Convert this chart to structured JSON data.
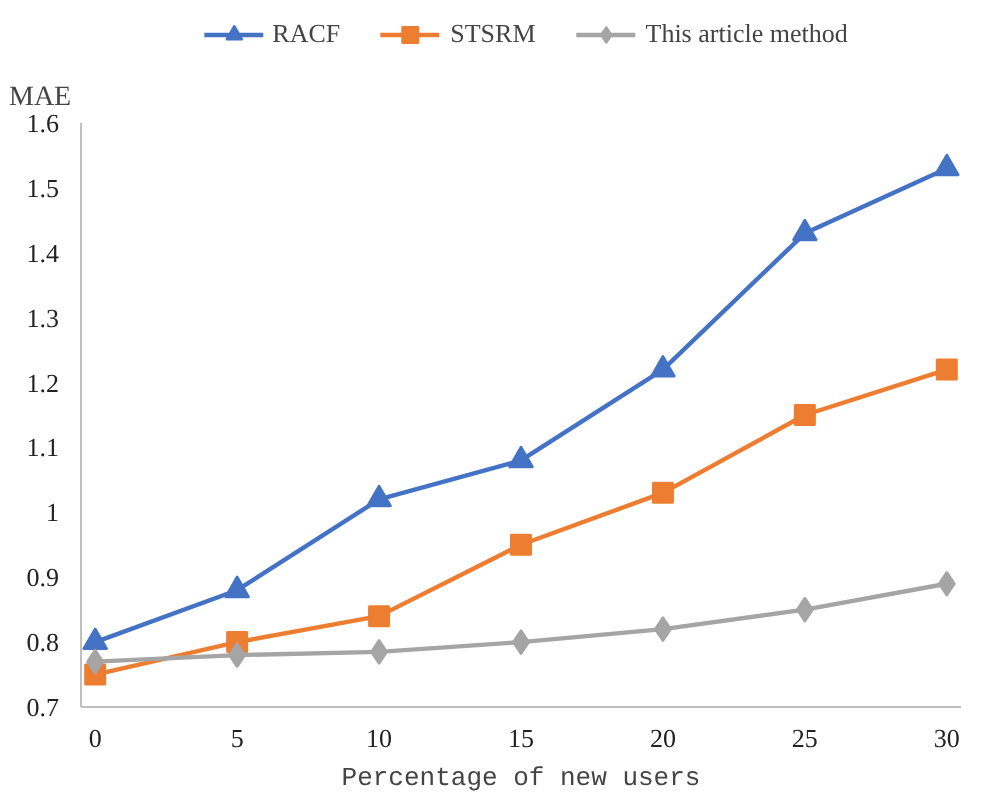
{
  "chart_data": {
    "type": "line",
    "ylabel": "MAE",
    "xlabel": "Percentage of new users",
    "x": [
      0,
      5,
      10,
      15,
      20,
      25,
      30
    ],
    "xlim": [
      -0.5,
      30.5
    ],
    "xticks": [
      0,
      5,
      10,
      15,
      20,
      25,
      30
    ],
    "ylim": [
      0.7,
      1.6
    ],
    "yticks": [
      {
        "value": 0.7,
        "label": "0.7"
      },
      {
        "value": 0.8,
        "label": "0.8"
      },
      {
        "value": 0.9,
        "label": "0.9"
      },
      {
        "value": 1.0,
        "label": "1"
      },
      {
        "value": 1.1,
        "label": "1.1"
      },
      {
        "value": 1.2,
        "label": "1.2"
      },
      {
        "value": 1.3,
        "label": "1.3"
      },
      {
        "value": 1.4,
        "label": "1.4"
      },
      {
        "value": 1.5,
        "label": "1.5"
      },
      {
        "value": 1.6,
        "label": "1.6"
      }
    ],
    "grid": false,
    "legend": "top",
    "series": [
      {
        "name": "RACF",
        "color": "#4472c4",
        "marker": "triangle",
        "values": [
          0.8,
          0.88,
          1.02,
          1.08,
          1.22,
          1.43,
          1.53
        ]
      },
      {
        "name": "STSRM",
        "color": "#ed7d31",
        "marker": "square",
        "values": [
          0.75,
          0.8,
          0.84,
          0.95,
          1.03,
          1.15,
          1.22
        ]
      },
      {
        "name": "This article method",
        "color": "#a5a5a5",
        "marker": "diamond",
        "values": [
          0.77,
          0.78,
          0.785,
          0.8,
          0.82,
          0.85,
          0.89
        ]
      }
    ]
  }
}
